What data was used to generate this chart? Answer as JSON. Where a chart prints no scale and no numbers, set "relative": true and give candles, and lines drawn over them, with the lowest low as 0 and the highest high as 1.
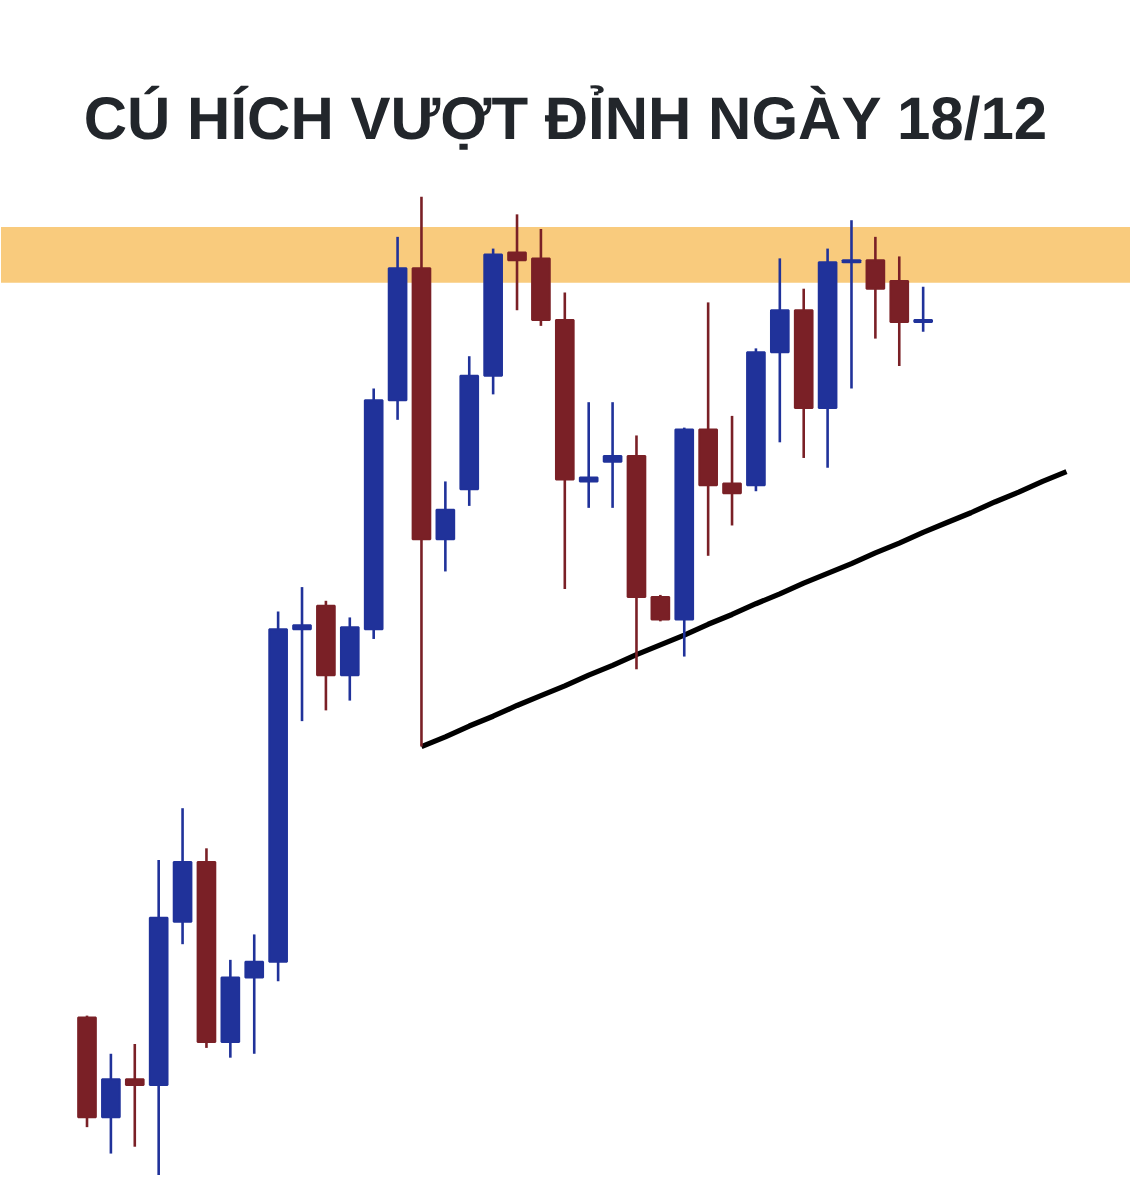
{
  "chart_data": {
    "type": "candlestick",
    "title": "CÚ HÍCH VƯỢT ĐỈNH NGÀY 18/12",
    "relative": true,
    "categories": [
      null,
      null,
      null,
      null,
      null,
      null,
      null,
      null,
      null,
      null,
      null,
      null,
      null,
      null,
      null,
      null,
      null,
      null,
      null,
      null,
      null,
      null,
      null,
      null,
      null,
      null,
      null,
      null,
      null,
      null,
      null,
      null,
      null,
      null,
      null,
      null,
      null,
      null,
      null,
      null,
      null,
      null
    ],
    "ohlc": [
      [
        0.161,
        0.163,
        0.049,
        0.059
      ],
      [
        0.059,
        0.124,
        0.022,
        0.098
      ],
      [
        0.098,
        0.134,
        0.029,
        0.092
      ],
      [
        0.092,
        0.322,
        0.0,
        0.263
      ],
      [
        0.259,
        0.375,
        0.236,
        0.32
      ],
      [
        0.32,
        0.334,
        0.13,
        0.136
      ],
      [
        0.136,
        0.22,
        0.12,
        0.202
      ],
      [
        0.202,
        0.246,
        0.124,
        0.218
      ],
      [
        0.218,
        0.576,
        0.198,
        0.558
      ],
      [
        0.558,
        0.601,
        0.464,
        0.562
      ],
      [
        0.582,
        0.587,
        0.475,
        0.511
      ],
      [
        0.511,
        0.57,
        0.485,
        0.56
      ],
      [
        0.558,
        0.804,
        0.548,
        0.792
      ],
      [
        0.792,
        0.959,
        0.772,
        0.927
      ],
      [
        0.927,
        1.0,
        0.438,
        0.65
      ],
      [
        0.65,
        0.709,
        0.617,
        0.68
      ],
      [
        0.701,
        0.837,
        0.684,
        0.817
      ],
      [
        0.817,
        0.947,
        0.798,
        0.941
      ],
      [
        0.943,
        0.982,
        0.884,
        0.935
      ],
      [
        0.937,
        0.967,
        0.868,
        0.874
      ],
      [
        0.874,
        0.902,
        0.599,
        0.711
      ],
      [
        0.709,
        0.79,
        0.682,
        0.713
      ],
      [
        0.729,
        0.79,
        0.682,
        0.735
      ],
      [
        0.735,
        0.756,
        0.517,
        0.591
      ],
      [
        0.591,
        0.593,
        0.566,
        0.568
      ],
      [
        0.568,
        0.764,
        0.53,
        0.762
      ],
      [
        0.762,
        0.892,
        0.633,
        0.705
      ],
      [
        0.707,
        0.776,
        0.664,
        0.697
      ],
      [
        0.705,
        0.845,
        0.699,
        0.841
      ],
      [
        0.841,
        0.937,
        0.749,
        0.884
      ],
      [
        0.884,
        0.906,
        0.733,
        0.784
      ],
      [
        0.784,
        0.947,
        0.723,
        0.933
      ],
      [
        0.933,
        0.976,
        0.804,
        0.935
      ],
      [
        0.935,
        0.959,
        0.855,
        0.906
      ],
      [
        0.914,
        0.939,
        0.827,
        0.872
      ],
      [
        0.872,
        0.908,
        0.862,
        0.874
      ],
      null,
      null,
      null,
      null,
      null,
      null
    ],
    "colors": [
      "#7a2026",
      "#20329a",
      "#7a2026",
      "#20329a",
      "#20329a",
      "#7a2026",
      "#20329a",
      "#20329a",
      "#20329a",
      "#20329a",
      "#7a2026",
      "#20329a",
      "#20329a",
      "#20329a",
      "#7a2026",
      "#20329a",
      "#20329a",
      "#20329a",
      "#7a2026",
      "#7a2026",
      "#7a2026",
      "#20329a",
      "#20329a",
      "#7a2026",
      "#7a2026",
      "#20329a",
      "#7a2026",
      "#7a2026",
      "#20329a",
      "#20329a",
      "#7a2026",
      "#20329a",
      "#20329a",
      "#7a2026",
      "#7a2026",
      "#20329a",
      null,
      null,
      null,
      null,
      null,
      null
    ],
    "bands": [
      {
        "axis": "y",
        "from": 0.912,
        "to": 0.969,
        "color": "#f9cb7d"
      }
    ],
    "series": [
      {
        "type": "line",
        "color": "#000000",
        "values": [
          null,
          null,
          null,
          null,
          null,
          null,
          null,
          null,
          null,
          null,
          null,
          null,
          null,
          null,
          0.438,
          0.448,
          0.459,
          0.469,
          0.48,
          0.49,
          0.5,
          0.511,
          0.521,
          0.532,
          0.542,
          0.552,
          0.563,
          0.573,
          0.584,
          0.594,
          0.605,
          0.615,
          0.625,
          0.636,
          0.646,
          0.657,
          0.667,
          0.677,
          0.688,
          0.698,
          0.709,
          0.719
        ]
      }
    ]
  }
}
